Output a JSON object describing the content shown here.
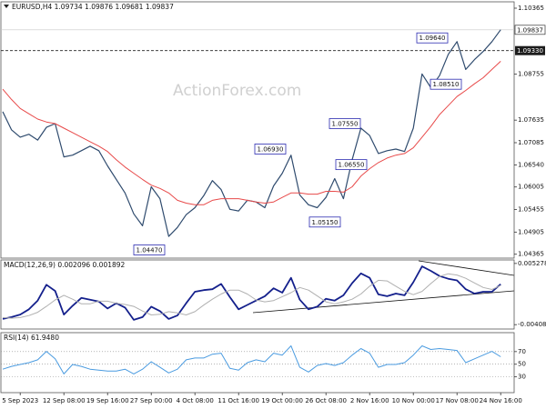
{
  "chart_data": [
    {
      "type": "line",
      "title": "EURUSD,H4  1.09734 1.09876 1.09681 1.09837",
      "watermark": "ActionForex.com",
      "series": [
        {
          "color": "#2f4b6e",
          "values": [
            1.0784,
            1.074,
            1.0722,
            1.0729,
            1.0715,
            1.0746,
            1.0755,
            1.0674,
            1.0678,
            1.0689,
            1.07,
            1.0689,
            1.0652,
            1.0619,
            1.0586,
            1.0535,
            1.0506,
            1.0601,
            1.0572,
            1.048,
            1.0502,
            1.0533,
            1.055,
            1.0579,
            1.0616,
            1.0594,
            1.0546,
            1.0542,
            1.0568,
            1.0564,
            1.055,
            1.0603,
            1.0634,
            1.0678,
            1.0581,
            1.0557,
            1.055,
            1.0575,
            1.0621,
            1.0572,
            1.0667,
            1.0744,
            1.0726,
            1.0682,
            1.0689,
            1.0693,
            1.0687,
            1.0744,
            1.0876,
            1.0843,
            1.0872,
            1.0924,
            1.0955,
            1.0887,
            1.0911,
            1.0931,
            1.0955,
            1.0984
          ]
        },
        {
          "color": "#e84a4a",
          "values": [
            1.0839,
            1.0814,
            1.0792,
            1.0779,
            1.0766,
            1.0759,
            1.0755,
            1.0744,
            1.0733,
            1.0722,
            1.0711,
            1.07,
            1.0687,
            1.0667,
            1.0649,
            1.0634,
            1.0619,
            1.0605,
            1.0597,
            1.0586,
            1.0568,
            1.0561,
            1.0557,
            1.0557,
            1.0568,
            1.0572,
            1.0572,
            1.0572,
            1.0568,
            1.0564,
            1.0561,
            1.0564,
            1.0575,
            1.0586,
            1.0586,
            1.0583,
            1.0583,
            1.059,
            1.059,
            1.0588,
            1.0601,
            1.0627,
            1.0645,
            1.066,
            1.0671,
            1.0678,
            1.0682,
            1.0696,
            1.0722,
            1.0748,
            1.0777,
            1.0799,
            1.0821,
            1.0836,
            1.0852,
            1.0867,
            1.0887,
            1.0907
          ]
        }
      ],
      "ylim": [
        1.0427,
        1.1052
      ],
      "yticks": [
        1.10365,
        1.08755,
        1.07635,
        1.07085,
        {
          "value": 1.0654,
          "label": "1.06540"
        },
        1.06005,
        1.05455,
        1.04905,
        1.04365
      ],
      "grid": false,
      "current_price": 1.09837,
      "level": {
        "value": 1.0933,
        "label": "1.09330"
      },
      "annotations": [
        {
          "value": 1.0964,
          "label": "1.09640"
        },
        {
          "value": 1.0851,
          "label": "1.08510"
        },
        {
          "value": 1.0755,
          "label": "1.07550"
        },
        {
          "value": 1.0693,
          "label": "1.06930"
        },
        {
          "value": 1.0655,
          "label": "1.06550"
        },
        {
          "value": 1.0515,
          "label": "1.05150"
        },
        {
          "value": 1.0447,
          "label": "1.04470"
        }
      ]
    },
    {
      "type": "line",
      "title": "MACD(12,26,9) 0.002096 0.001892",
      "series": [
        {
          "color": "#14208c",
          "values": [
            -0.00321,
            -0.00294,
            -0.00254,
            -0.00174,
            -0.0004,
            0.00201,
            0.00107,
            -0.00254,
            -0.0012,
            0.0,
            -0.00027,
            -0.00054,
            -0.00161,
            -0.0008,
            -0.00147,
            -0.00335,
            -0.00294,
            -0.00134,
            -0.00201,
            -0.00321,
            -0.00268,
            -0.0008,
            0.00094,
            0.0012,
            0.00134,
            0.00214,
            0.00013,
            -0.00174,
            -0.00107,
            -0.0004,
            0.00027,
            0.00147,
            0.0008,
            0.00308,
            -0.00027,
            -0.00174,
            -0.00134,
            -0.00013,
            -0.0004,
            0.0004,
            0.00227,
            0.00375,
            0.00308,
            0.00054,
            0.00027,
            0.00067,
            0.0004,
            0.00241,
            0.00482,
            0.00415,
            0.00335,
            0.00294,
            0.00268,
            0.00134,
            0.00067,
            0.00094,
            0.00094,
            0.0021
          ]
        },
        {
          "color": "#b0b0b0",
          "values": [
            -0.003,
            -0.0031,
            -0.003,
            -0.0027,
            -0.0022,
            -0.0013,
            -0.0003,
            0.0004,
            -0.0002,
            -0.0009,
            -0.0009,
            -0.0005,
            -0.0005,
            -0.0008,
            -0.001,
            -0.0013,
            -0.002,
            -0.0026,
            -0.0025,
            -0.0021,
            -0.0023,
            -0.0026,
            -0.0021,
            -0.0011,
            -0.0002,
            0.0006,
            0.0012,
            0.0012,
            0.0006,
            -0.0003,
            -0.0006,
            -0.0004,
            0.0002,
            0.0008,
            0.0016,
            0.0012,
            0.0003,
            -0.0006,
            -0.0009,
            -0.0006,
            -0.0002,
            0.0006,
            0.0018,
            0.0027,
            0.0026,
            0.0018,
            0.001,
            0.0005,
            0.001,
            0.0022,
            0.0033,
            0.0037,
            0.0035,
            0.003,
            0.0023,
            0.0016,
            0.0013,
            0.0019
          ]
        }
      ],
      "ylim": [
        -0.004756,
        0.005813
      ],
      "yticks": [
        0.005278,
        -0.004087
      ],
      "grid": false
    },
    {
      "type": "line",
      "title": "RSI(14) 61.9480",
      "series": [
        {
          "color": "#4a9be0",
          "values": [
            42.1,
            46.6,
            49.6,
            52.5,
            57,
            70.3,
            58.5,
            34.7,
            49.6,
            46.6,
            42.1,
            40.7,
            39.2,
            39.2,
            42.1,
            34.7,
            42.1,
            54,
            45.1,
            36.2,
            42.1,
            57,
            59.9,
            59.9,
            65.9,
            67.4,
            43.6,
            40.7,
            52.5,
            57,
            54,
            67.4,
            64.4,
            79.2,
            45.1,
            37.7,
            48.1,
            51,
            48.1,
            52.5,
            64.4,
            74.8,
            67.4,
            45.1,
            49.6,
            49.6,
            52.5,
            64.4,
            79.2,
            73.3,
            74.8,
            73.3,
            71.8,
            52.5,
            58.5,
            64.4,
            70.3,
            61.9
          ]
        }
      ],
      "ylim": [
        5,
        100
      ],
      "yticks": [
        70,
        50,
        30
      ],
      "grid": true,
      "categories": [
        null,
        null,
        "5 Sep 2023",
        null,
        null,
        null,
        null,
        "12 Sep 08:00",
        null,
        null,
        null,
        null,
        "19 Sep 16:00",
        null,
        null,
        null,
        null,
        "27 Sep 00:00",
        null,
        null,
        null,
        null,
        "4 Oct 08:00",
        null,
        null,
        null,
        null,
        "11 Oct 16:00",
        null,
        null,
        null,
        null,
        "19 Oct 00:00",
        null,
        null,
        null,
        null,
        "26 Oct 08:00",
        null,
        null,
        null,
        null,
        "2 Nov 16:00",
        null,
        null,
        null,
        null,
        "10 Nov 00:00",
        null,
        null,
        null,
        null,
        "17 Nov 08:00",
        null,
        null,
        null,
        null,
        "24 Nov 16:00"
      ]
    }
  ]
}
